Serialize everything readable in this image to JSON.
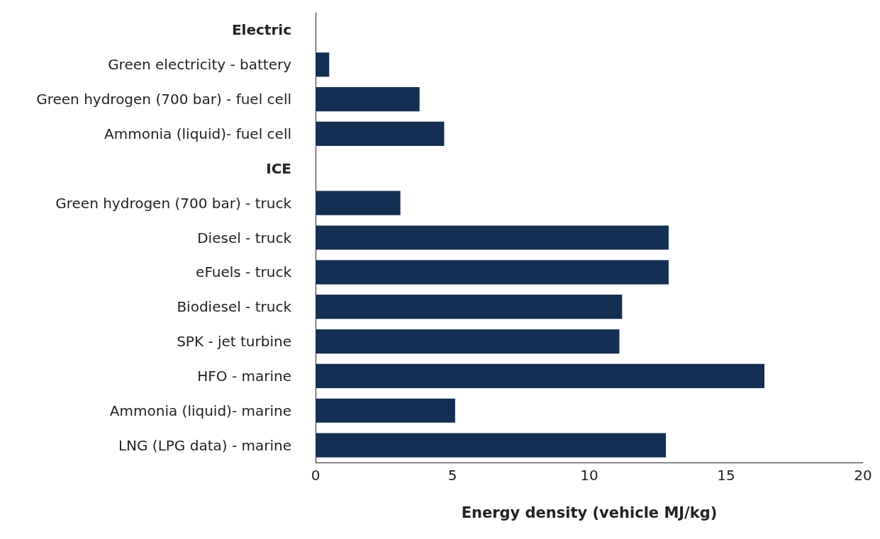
{
  "chart_data": {
    "type": "bar",
    "orientation": "horizontal",
    "xlabel": "Energy density (vehicle MJ/kg)",
    "categories": [
      "Electric",
      "Green electricity - battery",
      "Green hydrogen (700 bar) - fuel cell",
      "Ammonia (liquid)- fuel cell",
      "ICE",
      "Green hydrogen (700 bar) - truck",
      "Diesel - truck",
      "eFuels - truck",
      "Biodiesel - truck",
      "SPK - jet turbine",
      "HFO - marine",
      "Ammonia (liquid)- marine",
      "LNG (LPG data) - marine"
    ],
    "values": [
      null,
      0.5,
      3.8,
      4.7,
      null,
      3.1,
      12.9,
      12.9,
      11.2,
      11.1,
      16.4,
      5.1,
      12.8
    ],
    "color": "#142f54",
    "xlim": [
      0,
      20
    ],
    "xticks": [
      0,
      5,
      10,
      15,
      20
    ],
    "grid": false
  }
}
